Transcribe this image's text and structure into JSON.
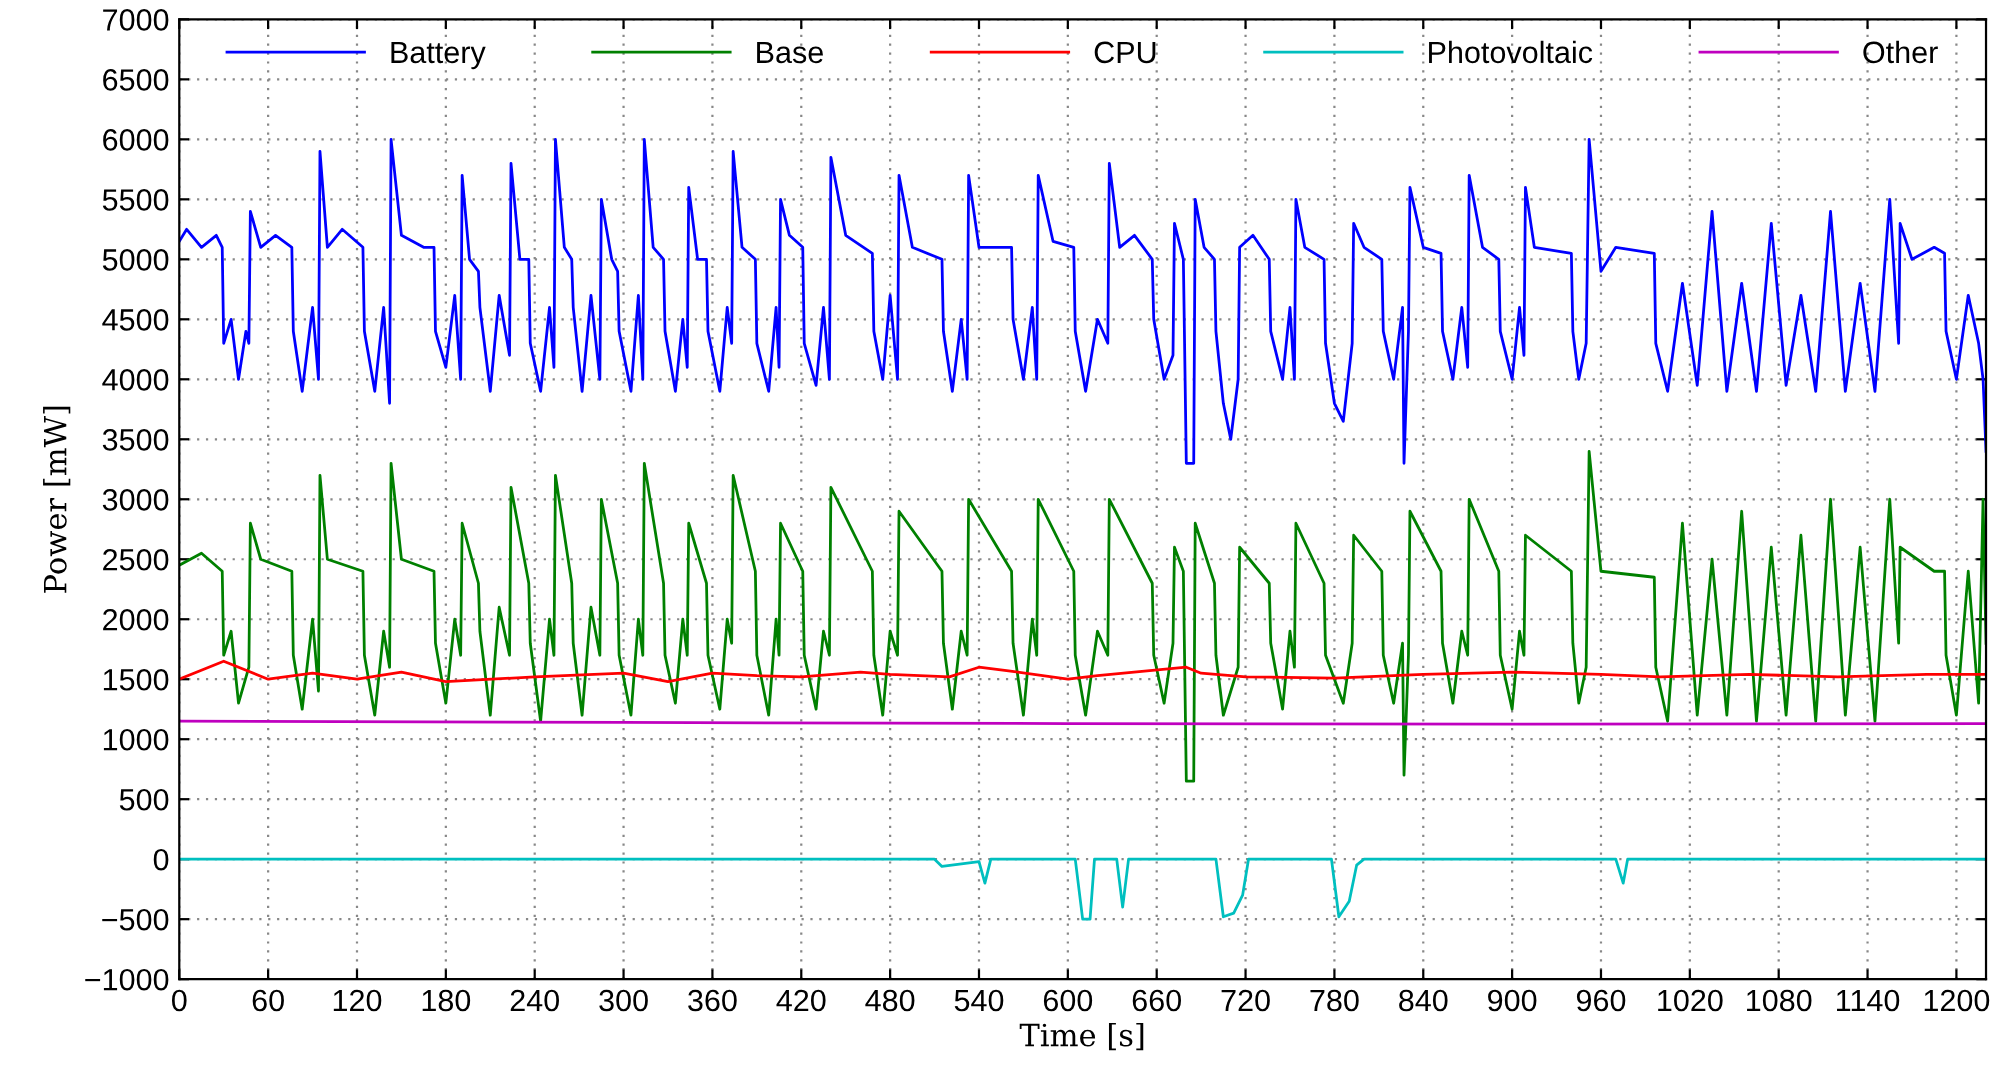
{
  "chart_data": {
    "type": "line",
    "xlabel": "Time [s]",
    "ylabel": "Power [mW]",
    "xlim": [
      0,
      1220
    ],
    "ylim": [
      -1000,
      7000
    ],
    "xticks": [
      0,
      60,
      120,
      180,
      240,
      300,
      360,
      420,
      480,
      540,
      600,
      660,
      720,
      780,
      840,
      900,
      960,
      1020,
      1080,
      1140,
      1200
    ],
    "yticks": [
      {
        "value": -1000,
        "label": "−1000"
      },
      {
        "value": -500,
        "label": "−500"
      },
      0,
      500,
      1000,
      1500,
      2000,
      2500,
      3000,
      3500,
      4000,
      4500,
      5000,
      5500,
      6000,
      6500,
      7000
    ],
    "grid": true,
    "legend": "top",
    "line_style": "solid",
    "marker": "none",
    "series": [
      {
        "name": "Battery",
        "color": "#0000ff",
        "x": [
          0,
          5,
          15,
          25,
          29,
          30,
          35,
          40,
          45,
          47,
          48,
          55,
          65,
          76,
          77,
          83,
          90,
          94,
          95,
          100,
          110,
          124,
          125,
          132,
          138,
          142,
          143,
          150,
          165,
          172,
          173,
          180,
          186,
          190,
          191,
          196,
          202,
          203,
          210,
          216,
          223,
          224,
          230,
          236,
          237,
          244,
          250,
          253,
          254,
          260,
          265,
          266,
          272,
          278,
          284,
          285,
          292,
          296,
          297,
          305,
          310,
          313,
          314,
          320,
          327,
          328,
          335,
          340,
          343,
          344,
          350,
          356,
          357,
          365,
          370,
          373,
          374,
          380,
          389,
          390,
          398,
          403,
          405,
          406,
          412,
          421,
          422,
          430,
          435,
          439,
          440,
          450,
          468,
          469,
          475,
          480,
          485,
          486,
          495,
          515,
          516,
          522,
          528,
          532,
          533,
          540,
          562,
          563,
          570,
          576,
          579,
          580,
          590,
          604,
          605,
          612,
          620,
          627,
          628,
          635,
          645,
          657,
          658,
          665,
          671,
          672,
          678,
          680,
          685,
          686,
          692,
          699,
          700,
          705,
          710,
          715,
          716,
          725,
          736,
          737,
          745,
          750,
          753,
          754,
          760,
          773,
          774,
          780,
          786,
          792,
          793,
          800,
          812,
          813,
          820,
          826,
          827,
          830,
          831,
          840,
          852,
          853,
          860,
          866,
          870,
          871,
          880,
          891,
          892,
          900,
          905,
          908,
          909,
          915,
          940,
          941,
          945,
          950,
          952,
          960,
          970,
          996,
          997,
          1005,
          1015,
          1025,
          1035,
          1045,
          1055,
          1065,
          1075,
          1085,
          1095,
          1105,
          1115,
          1125,
          1135,
          1145,
          1155,
          1161,
          1162,
          1170,
          1185,
          1192,
          1193,
          1200,
          1208,
          1215,
          1218,
          1220
        ],
        "values": [
          5150,
          5250,
          5100,
          5200,
          5100,
          4300,
          4500,
          4000,
          4400,
          4300,
          5400,
          5100,
          5200,
          5100,
          4400,
          3900,
          4600,
          4000,
          5900,
          5100,
          5250,
          5100,
          4400,
          3900,
          4600,
          3800,
          6000,
          5200,
          5100,
          5100,
          4400,
          4100,
          4700,
          4000,
          5700,
          5000,
          4900,
          4600,
          3900,
          4700,
          4200,
          5800,
          5000,
          5000,
          4300,
          3900,
          4600,
          4100,
          6000,
          5100,
          5000,
          4600,
          3900,
          4700,
          4000,
          5500,
          5000,
          4900,
          4400,
          3900,
          4700,
          4000,
          6000,
          5100,
          5000,
          4400,
          3900,
          4500,
          4100,
          5600,
          5000,
          5000,
          4400,
          3900,
          4600,
          4300,
          5900,
          5100,
          5000,
          4300,
          3900,
          4600,
          4100,
          5500,
          5200,
          5100,
          4300,
          3950,
          4600,
          4000,
          5850,
          5200,
          5050,
          4400,
          4000,
          4700,
          4000,
          5700,
          5100,
          5000,
          4400,
          3900,
          4500,
          4000,
          5700,
          5100,
          5100,
          4500,
          4000,
          4600,
          4000,
          5700,
          5150,
          5100,
          4400,
          3900,
          4500,
          4300,
          5800,
          5100,
          5200,
          5000,
          4500,
          4000,
          4200,
          5300,
          5000,
          3300,
          3300,
          5500,
          5100,
          5000,
          4400,
          3800,
          3500,
          4000,
          5100,
          5200,
          5000,
          4400,
          4000,
          4600,
          4000,
          5500,
          5100,
          5000,
          4300,
          3800,
          3650,
          4300,
          5300,
          5100,
          5000,
          4400,
          4000,
          4600,
          3300,
          4400,
          5600,
          5100,
          5050,
          4400,
          4000,
          4600,
          4100,
          5700,
          5100,
          5000,
          4400,
          4000,
          4600,
          4200,
          5600,
          5100,
          5050,
          4400,
          4000,
          4300,
          6000,
          4900,
          5100,
          5050,
          4300,
          3900,
          4800,
          3950,
          5400,
          3900,
          4800,
          3900,
          5300,
          3950,
          4700,
          3900,
          5400,
          3900,
          4800,
          3900,
          5500,
          4300,
          5300,
          5000,
          5100,
          5050,
          4400,
          4000,
          4700,
          4300,
          4000,
          3400
        ]
      },
      {
        "name": "Base",
        "color": "#008000",
        "x": [
          0,
          15,
          29,
          30,
          35,
          40,
          47,
          48,
          55,
          76,
          77,
          83,
          90,
          94,
          95,
          100,
          124,
          125,
          132,
          138,
          142,
          143,
          150,
          172,
          173,
          180,
          186,
          190,
          191,
          202,
          203,
          210,
          216,
          223,
          224,
          236,
          237,
          244,
          250,
          253,
          254,
          265,
          266,
          272,
          278,
          284,
          285,
          296,
          297,
          305,
          310,
          313,
          314,
          327,
          328,
          335,
          340,
          343,
          344,
          356,
          357,
          365,
          370,
          373,
          374,
          389,
          390,
          398,
          403,
          405,
          406,
          421,
          422,
          430,
          435,
          439,
          440,
          468,
          469,
          475,
          480,
          485,
          486,
          515,
          516,
          522,
          528,
          532,
          533,
          562,
          563,
          570,
          576,
          579,
          580,
          604,
          605,
          612,
          620,
          627,
          628,
          657,
          658,
          665,
          671,
          672,
          678,
          680,
          685,
          686,
          699,
          700,
          705,
          715,
          716,
          736,
          737,
          745,
          750,
          753,
          754,
          773,
          774,
          786,
          792,
          793,
          812,
          813,
          820,
          826,
          827,
          830,
          831,
          852,
          853,
          860,
          866,
          870,
          871,
          891,
          892,
          900,
          905,
          908,
          909,
          940,
          941,
          945,
          950,
          952,
          960,
          996,
          997,
          1005,
          1015,
          1025,
          1035,
          1045,
          1055,
          1065,
          1075,
          1085,
          1095,
          1105,
          1115,
          1125,
          1135,
          1145,
          1155,
          1161,
          1162,
          1185,
          1192,
          1193,
          1200,
          1208,
          1215,
          1218,
          1220
        ],
        "values": [
          2450,
          2550,
          2400,
          1700,
          1900,
          1300,
          1600,
          2800,
          2500,
          2400,
          1700,
          1250,
          2000,
          1400,
          3200,
          2500,
          2400,
          1700,
          1200,
          1900,
          1600,
          3300,
          2500,
          2400,
          1800,
          1300,
          2000,
          1700,
          2800,
          2300,
          1900,
          1200,
          2100,
          1700,
          3100,
          2300,
          1800,
          1150,
          2000,
          1700,
          3200,
          2300,
          1800,
          1200,
          2100,
          1700,
          3000,
          2300,
          1700,
          1200,
          2000,
          1700,
          3300,
          2300,
          1700,
          1300,
          2000,
          1700,
          2800,
          2300,
          1700,
          1250,
          2000,
          1800,
          3200,
          2400,
          1700,
          1200,
          2000,
          1700,
          2800,
          2400,
          1700,
          1250,
          1900,
          1700,
          3100,
          2400,
          1700,
          1200,
          1900,
          1700,
          2900,
          2400,
          1800,
          1250,
          1900,
          1700,
          3000,
          2400,
          1800,
          1200,
          2000,
          1700,
          3000,
          2400,
          1700,
          1200,
          1900,
          1700,
          3000,
          2300,
          1700,
          1300,
          1800,
          2600,
          2400,
          650,
          650,
          2800,
          2300,
          1700,
          1200,
          1600,
          2600,
          2300,
          1800,
          1250,
          1900,
          1600,
          2800,
          2300,
          1700,
          1300,
          1800,
          2700,
          2400,
          1700,
          1300,
          1800,
          700,
          1700,
          2900,
          2400,
          1800,
          1300,
          1900,
          1700,
          3000,
          2400,
          1700,
          1250,
          1900,
          1700,
          2700,
          2400,
          1800,
          1300,
          1600,
          3400,
          2400,
          2350,
          1600,
          1150,
          2800,
          1200,
          2500,
          1200,
          2900,
          1150,
          2600,
          1200,
          2700,
          1150,
          3000,
          1200,
          2600,
          1150,
          3000,
          1800,
          2600,
          2400,
          2400,
          1700,
          1200,
          2400,
          1300,
          3000,
          1800
        ]
      },
      {
        "name": "CPU",
        "color": "#ff0000",
        "x": [
          0,
          30,
          60,
          90,
          120,
          150,
          180,
          240,
          300,
          330,
          360,
          390,
          420,
          460,
          480,
          520,
          540,
          560,
          600,
          620,
          680,
          690,
          720,
          780,
          840,
          900,
          960,
          1000,
          1060,
          1120,
          1180,
          1220
        ],
        "values": [
          1500,
          1650,
          1500,
          1550,
          1500,
          1560,
          1480,
          1520,
          1550,
          1480,
          1550,
          1530,
          1520,
          1560,
          1540,
          1520,
          1600,
          1570,
          1500,
          1530,
          1600,
          1550,
          1520,
          1510,
          1540,
          1560,
          1540,
          1520,
          1540,
          1520,
          1540,
          1540
        ]
      },
      {
        "name": "Photovoltaic",
        "color": "#00bfbf",
        "x": [
          0,
          510,
          515,
          540,
          544,
          548,
          605,
          610,
          615,
          618,
          633,
          637,
          641,
          700,
          705,
          712,
          718,
          722,
          778,
          783,
          790,
          795,
          800,
          970,
          975,
          978,
          1220
        ],
        "values": [
          0,
          0,
          -60,
          -20,
          -200,
          0,
          0,
          -500,
          -500,
          0,
          0,
          -400,
          0,
          0,
          -480,
          -450,
          -300,
          0,
          0,
          -480,
          -350,
          -50,
          0,
          0,
          -200,
          0,
          0
        ]
      },
      {
        "name": "Other",
        "color": "#bf00bf",
        "x": [
          0,
          300,
          600,
          900,
          1220
        ],
        "values": [
          1150,
          1140,
          1130,
          1125,
          1130
        ]
      }
    ]
  }
}
